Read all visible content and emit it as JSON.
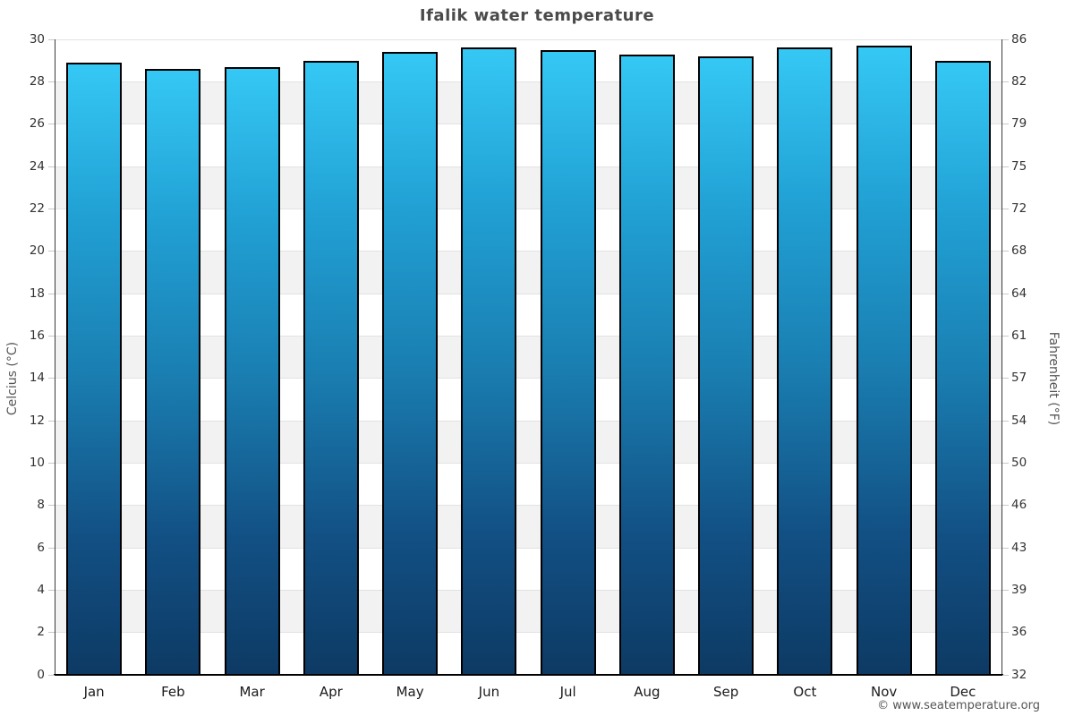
{
  "chart_data": {
    "type": "bar",
    "title": "Ifalik water temperature",
    "categories": [
      "Jan",
      "Feb",
      "Mar",
      "Apr",
      "May",
      "Jun",
      "Jul",
      "Aug",
      "Sep",
      "Oct",
      "Nov",
      "Dec"
    ],
    "values": [
      28.9,
      28.6,
      28.7,
      29.0,
      29.4,
      29.6,
      29.5,
      29.3,
      29.2,
      29.6,
      29.7,
      29.0
    ],
    "value_unit": "°C",
    "xlabel": "",
    "ylabel_left": "Celcius (°C)",
    "ylabel_right": "Fahrenheit (°F)",
    "ylim": [
      0,
      30
    ],
    "yticks_celsius": [
      0,
      2,
      4,
      6,
      8,
      10,
      12,
      14,
      16,
      18,
      20,
      22,
      24,
      26,
      28,
      30
    ],
    "yticks_fahrenheit": [
      32,
      36,
      39,
      43,
      46,
      50,
      54,
      57,
      61,
      64,
      68,
      72,
      75,
      79,
      82,
      86
    ],
    "grid": "horizontal gridlines every 2°C with alternating white/gray bands",
    "legend": "none"
  },
  "footer": {
    "copyright": "© www.seatemperature.org"
  },
  "colors": {
    "bar_gradient_top": "#35c8f5",
    "bar_gradient_bottom": "#0d3a64",
    "bar_border": "#000000",
    "band_alternate": "#f2f2f2",
    "gridline": "#e2e2e2",
    "axis_line": "#3a3a3a",
    "title_text": "#4a4a4a",
    "tick_text": "#333333",
    "footer_text": "#555555"
  }
}
